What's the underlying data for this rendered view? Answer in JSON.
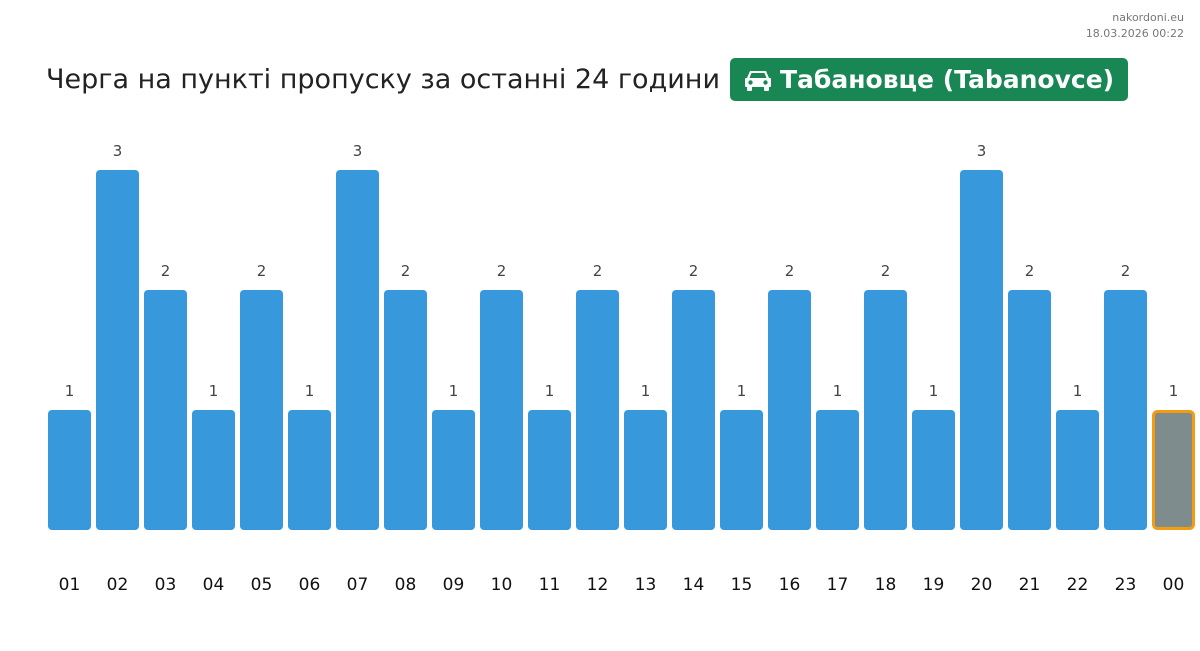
{
  "site": {
    "name": "nakordoni.eu",
    "timestamp": "18.03.2026 00:22"
  },
  "header": {
    "title": "Черга на пункті пропуску за останні 24 години",
    "checkpoint": "Табановце (Tabanovce)",
    "checkpoint_icon": "car-icon",
    "badge_color": "#198754"
  },
  "chart_data": {
    "type": "bar",
    "categories": [
      "01",
      "02",
      "03",
      "04",
      "05",
      "06",
      "07",
      "08",
      "09",
      "10",
      "11",
      "12",
      "13",
      "14",
      "15",
      "16",
      "17",
      "18",
      "19",
      "20",
      "21",
      "22",
      "23",
      "00"
    ],
    "values": [
      1,
      3,
      2,
      1,
      2,
      1,
      3,
      2,
      1,
      2,
      1,
      2,
      1,
      2,
      1,
      2,
      1,
      2,
      1,
      3,
      2,
      1,
      2,
      1
    ],
    "ylim": [
      0,
      3
    ],
    "colors": {
      "bar": "#3798db",
      "current_bar": "#7f8c8d",
      "current_border": "#f39c12"
    },
    "highlighted_category": "00",
    "grid": false
  }
}
